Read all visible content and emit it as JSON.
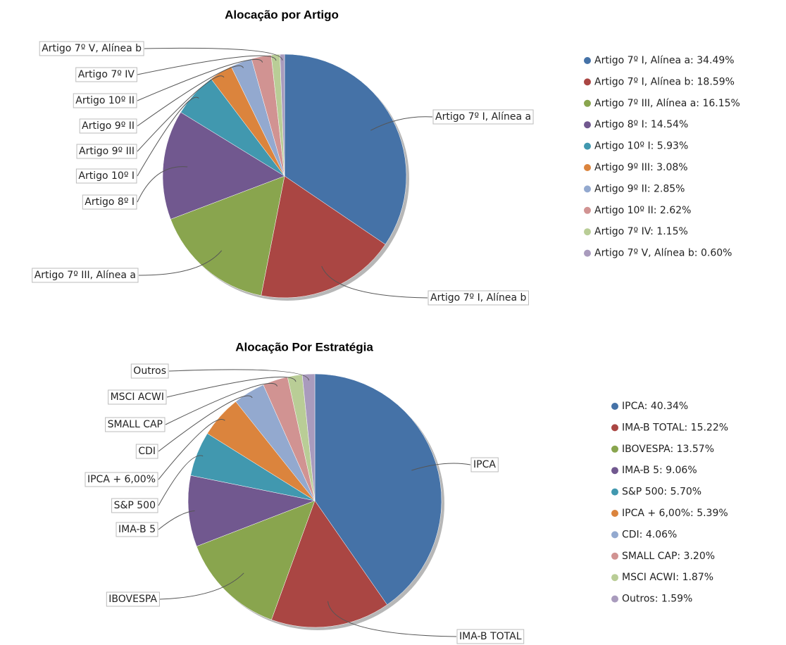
{
  "chart_data": [
    {
      "type": "pie",
      "title": "Alocação por Artigo",
      "categories": [
        "Artigo 7º I, Alínea a",
        "Artigo 7º I, Alínea b",
        "Artigo 7º III, Alínea a",
        "Artigo 8º I",
        "Artigo 10º I",
        "Artigo 9º III",
        "Artigo 9º II",
        "Artigo 10º II",
        "Artigo 7º IV",
        "Artigo 7º V, Alínea b"
      ],
      "values": [
        34.49,
        18.59,
        16.15,
        14.54,
        5.93,
        3.08,
        2.85,
        2.62,
        1.15,
        0.6
      ],
      "legend": [
        "Artigo 7º I, Alínea a: 34.49%",
        "Artigo 7º I, Alínea b: 18.59%",
        "Artigo 7º III, Alínea a: 16.15%",
        "Artigo 8º I: 14.54%",
        "Artigo 10º I: 5.93%",
        "Artigo 9º III: 3.08%",
        "Artigo 9º II: 2.85%",
        "Artigo 10º II: 2.62%",
        "Artigo 7º IV: 1.15%",
        "Artigo 7º V, Alínea b: 0.60%"
      ],
      "colors": [
        "#4572a7",
        "#aa4643",
        "#89a54e",
        "#71588f",
        "#4198af",
        "#db843d",
        "#93a9cf",
        "#d19392",
        "#b9cd96",
        "#a99bbd"
      ],
      "legend_position": "right"
    },
    {
      "type": "pie",
      "title": "Alocação Por Estratégia",
      "categories": [
        "IPCA",
        "IMA-B TOTAL",
        "IBOVESPA",
        "IMA-B 5",
        "S&P 500",
        "IPCA + 6,00%",
        "CDI",
        "SMALL CAP",
        "MSCI ACWI",
        "Outros"
      ],
      "values": [
        40.34,
        15.22,
        13.57,
        9.06,
        5.7,
        5.39,
        4.06,
        3.2,
        1.87,
        1.59
      ],
      "legend": [
        "IPCA: 40.34%",
        "IMA-B TOTAL: 15.22%",
        "IBOVESPA: 13.57%",
        "IMA-B 5: 9.06%",
        "S&P 500: 5.70%",
        "IPCA + 6,00%: 5.39%",
        "CDI: 4.06%",
        "SMALL CAP: 3.20%",
        "MSCI ACWI: 1.87%",
        "Outros: 1.59%"
      ],
      "colors": [
        "#4572a7",
        "#aa4643",
        "#89a54e",
        "#71588f",
        "#4198af",
        "#db843d",
        "#93a9cf",
        "#d19392",
        "#b9cd96",
        "#a99bbd"
      ],
      "legend_position": "right"
    }
  ]
}
